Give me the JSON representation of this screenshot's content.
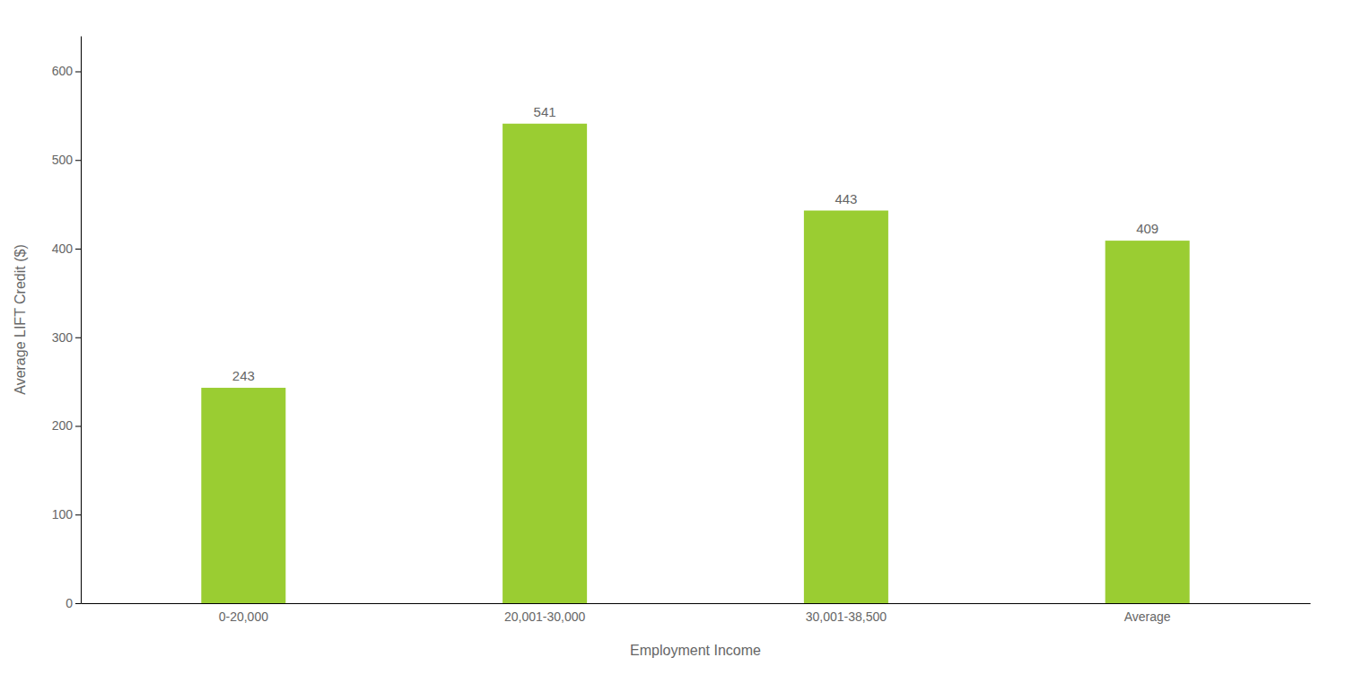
{
  "chart_data": {
    "type": "bar",
    "categories": [
      "0-20,000",
      "20,001-30,000",
      "30,001-38,500",
      "Average"
    ],
    "values": [
      243,
      541,
      443,
      409
    ],
    "color": "#9ACD32",
    "xlabel": "Employment Income",
    "ylabel": "Average LIFT Credit ($)",
    "ylim": [
      0,
      640
    ],
    "yticks": [
      0,
      100,
      200,
      300,
      400,
      500,
      600
    ],
    "grid": false,
    "data_labels": true
  }
}
